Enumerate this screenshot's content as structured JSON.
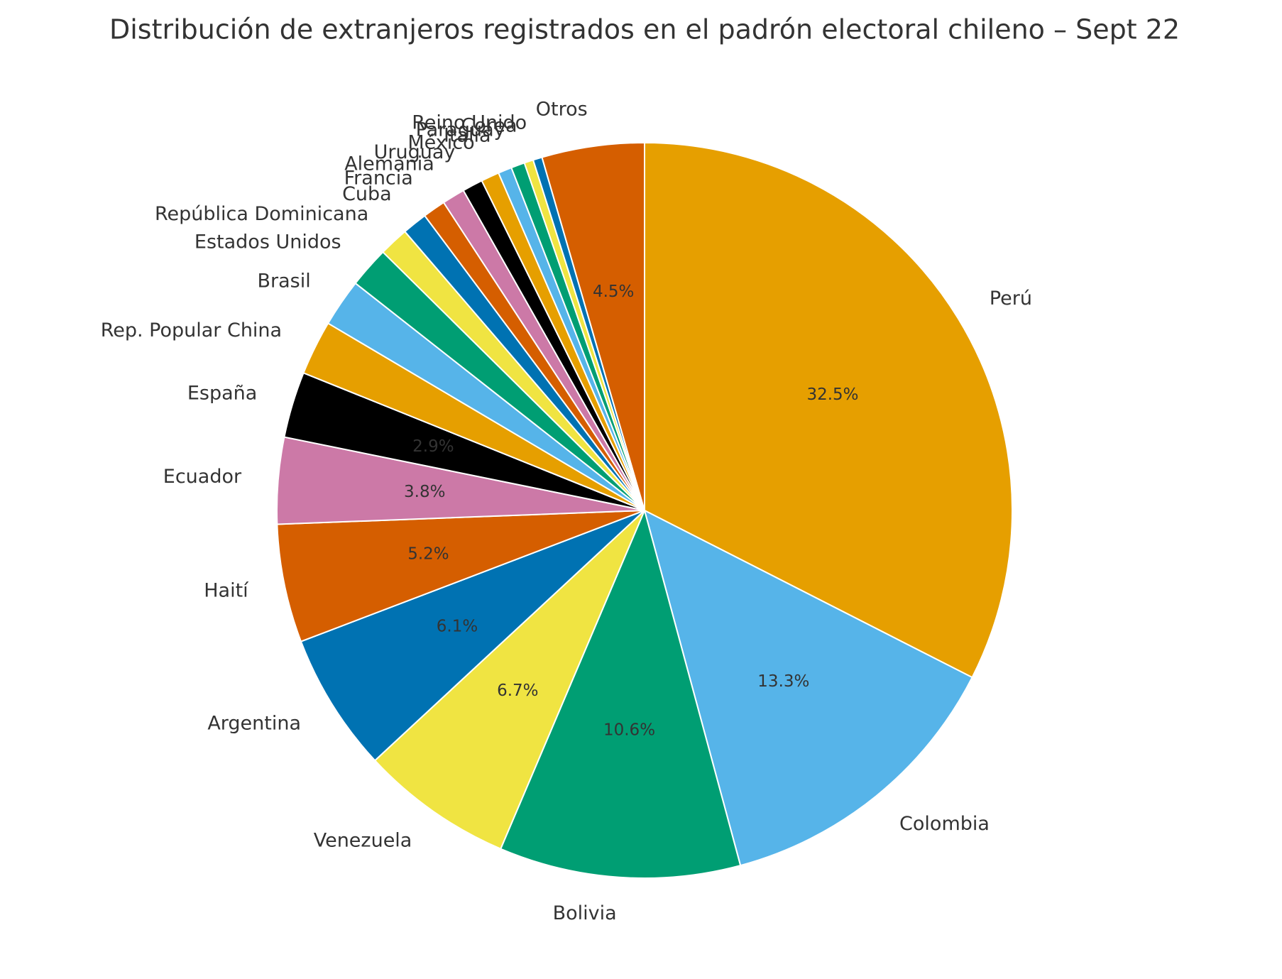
{
  "chart_data": {
    "type": "pie",
    "title": "Distribución de extranjeros registrados en el padrón electoral chileno – Sept 22",
    "categories": [
      "Perú",
      "Colombia",
      "Bolivia",
      "Venezuela",
      "Argentina",
      "Haití",
      "Ecuador",
      "España",
      "Rep. Popular China",
      "Brasil",
      "Estados Unidos",
      "República Dominicana",
      "Cuba",
      "Francia",
      "Alemania",
      "Uruguay",
      "México",
      "Italia",
      "Paraguay",
      "Corea",
      "Reino Unido",
      "Otros"
    ],
    "values": [
      32.5,
      13.3,
      10.6,
      6.7,
      6.1,
      5.2,
      3.8,
      2.9,
      2.4,
      2.1,
      1.8,
      1.3,
      1.1,
      1.0,
      1.0,
      0.9,
      0.8,
      0.6,
      0.6,
      0.4,
      0.4,
      4.5
    ],
    "value_labels": [
      "32.5%",
      "13.3%",
      "10.6%",
      "6.7%",
      "6.1%",
      "5.2%",
      "3.8%",
      "2.9%",
      null,
      null,
      null,
      null,
      null,
      null,
      null,
      null,
      null,
      null,
      null,
      null,
      null,
      "4.5%"
    ],
    "colors": [
      "#E69F00",
      "#56B4E9",
      "#009E73",
      "#F0E442",
      "#0072B2",
      "#D55E00",
      "#CC79A7",
      "#000000",
      "#E69F00",
      "#56B4E9",
      "#009E73",
      "#F0E442",
      "#0072B2",
      "#D55E00",
      "#CC79A7",
      "#000000",
      "#E69F00",
      "#56B4E9",
      "#009E73",
      "#F0E442",
      "#0072B2",
      "#D55E00"
    ],
    "start_angle": 90,
    "direction": "clockwise"
  }
}
